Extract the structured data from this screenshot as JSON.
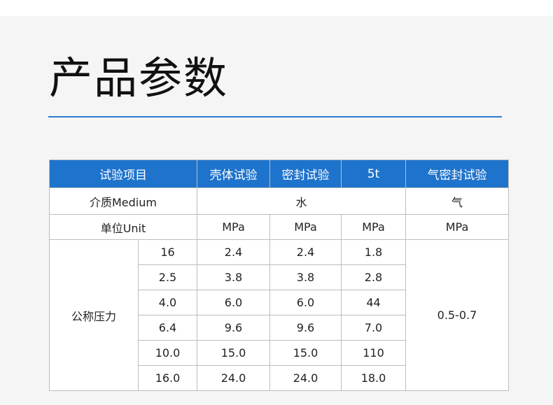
{
  "title": "产品参数",
  "accent": "#1e73cc",
  "header": {
    "item": "试验项目",
    "shell": "壳体试验",
    "seal": "密封试验",
    "col5t": "5t",
    "air": "气密封试验"
  },
  "medium": {
    "label": "介质Medium",
    "water": "水",
    "air": "气"
  },
  "unit": {
    "label": "单位Unit",
    "values": [
      "MPa",
      "MPa",
      "MPa",
      "MPa"
    ]
  },
  "pressure": {
    "label": "公称压力",
    "air_range": "0.5-0.7",
    "rows": [
      [
        "16",
        "2.4",
        "2.4",
        "1.8"
      ],
      [
        "2.5",
        "3.8",
        "3.8",
        "2.8"
      ],
      [
        "4.0",
        "6.0",
        "6.0",
        "44"
      ],
      [
        "6.4",
        "9.6",
        "9.6",
        "7.0"
      ],
      [
        "10.0",
        "15.0",
        "15.0",
        "110"
      ],
      [
        "16.0",
        "24.0",
        "24.0",
        "18.0"
      ]
    ]
  }
}
